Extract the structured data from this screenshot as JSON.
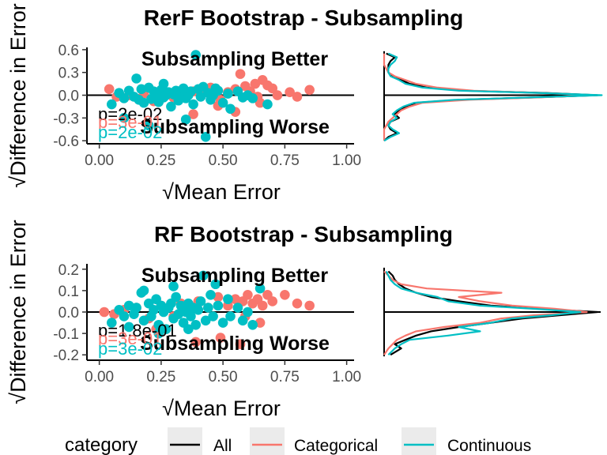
{
  "colors": {
    "all": "#000000",
    "categorical": "#F8766D",
    "continuous": "#00BFC4",
    "legend_key_bg": "#EBEBEB"
  },
  "legend": {
    "title": "category",
    "items": [
      {
        "label": "All",
        "color": "#000000"
      },
      {
        "label": "Categorical",
        "color": "#F8766D"
      },
      {
        "label": "Continuous",
        "color": "#00BFC4"
      }
    ]
  },
  "chart_data": [
    {
      "type": "scatter",
      "title": "RerF Bootstrap - Subsampling",
      "xlabel": "√Mean Error",
      "ylabel": "√Difference in Error",
      "xlim": [
        -0.05,
        1.03
      ],
      "ylim": [
        -0.64,
        0.63
      ],
      "xticks": [
        "0.00",
        "0.25",
        "0.50",
        "0.75",
        "1.00"
      ],
      "xtick_values": [
        0,
        0.25,
        0.5,
        0.75,
        1.0
      ],
      "yticks": [
        "0.6",
        "0.3",
        "0.0",
        "-0.3",
        "-0.6"
      ],
      "ytick_values": [
        0.6,
        0.3,
        0.0,
        -0.3,
        -0.6
      ],
      "annotations": {
        "better": "Subsampling Better",
        "worse": "Subsampling Worse"
      },
      "pvalues": [
        {
          "text": "p=2e-02",
          "color": "#000000"
        },
        {
          "text": "p=3e-01",
          "color": "#F8766D"
        },
        {
          "text": "p=2e-02",
          "color": "#00BFC4"
        }
      ],
      "series": [
        {
          "name": "Categorical",
          "color": "#F8766D",
          "points": [
            [
              0.04,
              0.08
            ],
            [
              0.07,
              -0.02
            ],
            [
              0.12,
              0.0
            ],
            [
              0.18,
              0.02
            ],
            [
              0.22,
              -0.08
            ],
            [
              0.26,
              0.06
            ],
            [
              0.3,
              -0.03
            ],
            [
              0.34,
              0.01
            ],
            [
              0.38,
              0.05
            ],
            [
              0.42,
              0.08
            ],
            [
              0.45,
              0.1
            ],
            [
              0.49,
              -0.06
            ],
            [
              0.52,
              0.04
            ],
            [
              0.55,
              0.08
            ],
            [
              0.57,
              0.28
            ],
            [
              0.59,
              0.12
            ],
            [
              0.61,
              0.05
            ],
            [
              0.63,
              0.15
            ],
            [
              0.64,
              -0.02
            ],
            [
              0.66,
              0.2
            ],
            [
              0.68,
              0.13
            ],
            [
              0.7,
              0.09
            ],
            [
              0.72,
              0.0
            ],
            [
              0.77,
              0.04
            ],
            [
              0.8,
              -0.02
            ],
            [
              0.85,
              0.07
            ],
            [
              0.55,
              -0.22
            ],
            [
              0.48,
              -0.14
            ],
            [
              0.38,
              -0.25
            ],
            [
              0.65,
              -0.1
            ]
          ]
        },
        {
          "name": "Continuous",
          "color": "#00BFC4",
          "points": [
            [
              0.05,
              -0.12
            ],
            [
              0.08,
              0.03
            ],
            [
              0.1,
              -0.04
            ],
            [
              0.12,
              0.06
            ],
            [
              0.14,
              -0.02
            ],
            [
              0.15,
              0.22
            ],
            [
              0.17,
              0.08
            ],
            [
              0.18,
              -0.1
            ],
            [
              0.2,
              0.1
            ],
            [
              0.21,
              -0.05
            ],
            [
              0.22,
              0.05
            ],
            [
              0.23,
              0.02
            ],
            [
              0.24,
              -0.09
            ],
            [
              0.25,
              0.07
            ],
            [
              0.26,
              -0.03
            ],
            [
              0.27,
              0.0
            ],
            [
              0.28,
              0.04
            ],
            [
              0.29,
              -0.15
            ],
            [
              0.3,
              0.01
            ],
            [
              0.31,
              0.06
            ],
            [
              0.32,
              -0.07
            ],
            [
              0.33,
              0.02
            ],
            [
              0.34,
              0.09
            ],
            [
              0.35,
              -0.04
            ],
            [
              0.36,
              0.0
            ],
            [
              0.37,
              0.05
            ],
            [
              0.38,
              -0.12
            ],
            [
              0.39,
              0.53
            ],
            [
              0.4,
              0.08
            ],
            [
              0.41,
              -0.02
            ],
            [
              0.42,
              0.11
            ],
            [
              0.43,
              -0.55
            ],
            [
              0.44,
              0.03
            ],
            [
              0.45,
              -0.06
            ],
            [
              0.46,
              0.0
            ],
            [
              0.48,
              0.06
            ],
            [
              0.5,
              -0.1
            ],
            [
              0.52,
              0.02
            ],
            [
              0.53,
              -0.18
            ],
            [
              0.56,
              0.05
            ],
            [
              0.58,
              -0.03
            ],
            [
              0.6,
              0.0
            ],
            [
              0.62,
              -0.04
            ],
            [
              0.68,
              -0.12
            ],
            [
              0.1,
              -0.3
            ],
            [
              0.2,
              -0.4
            ],
            [
              0.26,
              0.15
            ],
            [
              0.47,
              0.09
            ],
            [
              0.35,
              -0.32
            ],
            [
              0.16,
              -0.06
            ]
          ]
        }
      ],
      "density": {
        "yvals": [
          -0.6,
          -0.55,
          -0.5,
          -0.45,
          -0.4,
          -0.35,
          -0.3,
          -0.25,
          -0.2,
          -0.15,
          -0.1,
          -0.06,
          -0.03,
          0.0,
          0.03,
          0.06,
          0.1,
          0.15,
          0.2,
          0.25,
          0.3,
          0.35,
          0.4,
          0.45,
          0.5,
          0.55
        ],
        "series": [
          {
            "name": "All",
            "color": "#000000",
            "values": [
              0.0,
              0.02,
              0.06,
              0.03,
              0.02,
              0.03,
              0.07,
              0.05,
              0.07,
              0.1,
              0.15,
              0.35,
              0.7,
              1.0,
              0.75,
              0.38,
              0.2,
              0.12,
              0.08,
              0.04,
              0.02,
              0.02,
              0.02,
              0.03,
              0.05,
              0.01
            ]
          },
          {
            "name": "Categorical",
            "color": "#F8766D",
            "values": [
              0.0,
              0.0,
              0.0,
              0.0,
              0.01,
              0.02,
              0.04,
              0.06,
              0.08,
              0.12,
              0.18,
              0.4,
              0.72,
              0.98,
              0.72,
              0.42,
              0.25,
              0.15,
              0.1,
              0.05,
              0.02,
              0.01,
              0.0,
              0.0,
              0.0,
              0.0
            ]
          },
          {
            "name": "Continuous",
            "color": "#00BFC4",
            "values": [
              0.0,
              0.03,
              0.07,
              0.04,
              0.02,
              0.03,
              0.06,
              0.04,
              0.06,
              0.09,
              0.14,
              0.33,
              0.68,
              1.02,
              0.72,
              0.35,
              0.18,
              0.1,
              0.07,
              0.03,
              0.02,
              0.02,
              0.03,
              0.05,
              0.06,
              0.02
            ]
          }
        ]
      }
    },
    {
      "type": "scatter",
      "title": "RF Bootstrap - Subsampling",
      "xlabel": "√Mean Error",
      "ylabel": "√Difference in Error",
      "xlim": [
        -0.05,
        1.03
      ],
      "ylim": [
        -0.225,
        0.225
      ],
      "xticks": [
        "0.00",
        "0.25",
        "0.50",
        "0.75",
        "1.00"
      ],
      "xtick_values": [
        0,
        0.25,
        0.5,
        0.75,
        1.0
      ],
      "yticks": [
        "0.2",
        "0.1",
        "0.0",
        "-0.1",
        "-0.2"
      ],
      "ytick_values": [
        0.2,
        0.1,
        0.0,
        -0.1,
        -0.2
      ],
      "annotations": {
        "better": "Subsampling Better",
        "worse": "Subsampling Worse"
      },
      "pvalues": [
        {
          "text": "p=1.8e-01",
          "color": "#000000"
        },
        {
          "text": "p=3e-01",
          "color": "#F8766D"
        },
        {
          "text": "p=3e-02",
          "color": "#00BFC4"
        }
      ],
      "series": [
        {
          "name": "Categorical",
          "color": "#F8766D",
          "points": [
            [
              0.02,
              0.0
            ],
            [
              0.06,
              -0.01
            ],
            [
              0.1,
              0.01
            ],
            [
              0.15,
              0.02
            ],
            [
              0.2,
              -0.03
            ],
            [
              0.25,
              0.03
            ],
            [
              0.3,
              -0.02
            ],
            [
              0.33,
              0.04
            ],
            [
              0.36,
              0.0
            ],
            [
              0.4,
              0.05
            ],
            [
              0.44,
              0.02
            ],
            [
              0.48,
              0.07
            ],
            [
              0.52,
              0.03
            ],
            [
              0.55,
              0.06
            ],
            [
              0.58,
              0.05
            ],
            [
              0.6,
              0.08
            ],
            [
              0.62,
              0.04
            ],
            [
              0.64,
              0.06
            ],
            [
              0.66,
              0.03
            ],
            [
              0.68,
              0.08
            ],
            [
              0.7,
              0.05
            ],
            [
              0.75,
              0.08
            ],
            [
              0.8,
              0.04
            ],
            [
              0.85,
              0.03
            ],
            [
              0.57,
              -0.15
            ],
            [
              0.49,
              -0.12
            ],
            [
              0.39,
              -0.14
            ],
            [
              0.65,
              -0.05
            ],
            [
              0.59,
              -0.02
            ],
            [
              0.23,
              -0.08
            ]
          ]
        },
        {
          "name": "Continuous",
          "color": "#00BFC4",
          "points": [
            [
              0.05,
              -0.05
            ],
            [
              0.08,
              0.01
            ],
            [
              0.1,
              -0.02
            ],
            [
              0.12,
              0.03
            ],
            [
              0.14,
              -0.01
            ],
            [
              0.15,
              0.02
            ],
            [
              0.17,
              0.09
            ],
            [
              0.18,
              -0.04
            ],
            [
              0.2,
              0.04
            ],
            [
              0.21,
              -0.02
            ],
            [
              0.22,
              0.01
            ],
            [
              0.23,
              0.06
            ],
            [
              0.24,
              -0.06
            ],
            [
              0.25,
              0.03
            ],
            [
              0.26,
              0.0
            ],
            [
              0.27,
              -0.08
            ],
            [
              0.28,
              0.02
            ],
            [
              0.29,
              0.04
            ],
            [
              0.3,
              -0.03
            ],
            [
              0.31,
              0.07
            ],
            [
              0.32,
              -0.01
            ],
            [
              0.33,
              0.03
            ],
            [
              0.34,
              -0.05
            ],
            [
              0.35,
              0.0
            ],
            [
              0.36,
              0.04
            ],
            [
              0.37,
              -0.02
            ],
            [
              0.38,
              0.02
            ],
            [
              0.39,
              -0.06
            ],
            [
              0.4,
              0.01
            ],
            [
              0.41,
              0.05
            ],
            [
              0.42,
              0.17
            ],
            [
              0.43,
              -0.04
            ],
            [
              0.44,
              0.02
            ],
            [
              0.45,
              0.08
            ],
            [
              0.46,
              -0.02
            ],
            [
              0.48,
              0.03
            ],
            [
              0.5,
              -0.05
            ],
            [
              0.52,
              0.06
            ],
            [
              0.53,
              -0.02
            ],
            [
              0.56,
              0.02
            ],
            [
              0.58,
              -0.04
            ],
            [
              0.6,
              0.0
            ],
            [
              0.62,
              -0.06
            ],
            [
              0.65,
              0.11
            ],
            [
              0.18,
              0.1
            ],
            [
              0.3,
              0.12
            ],
            [
              0.24,
              -0.1
            ],
            [
              0.12,
              -0.07
            ],
            [
              0.47,
              0.13
            ],
            [
              0.36,
              -0.08
            ]
          ]
        }
      ],
      "density": {
        "yvals": [
          -0.2,
          -0.17,
          -0.15,
          -0.13,
          -0.11,
          -0.09,
          -0.07,
          -0.05,
          -0.03,
          -0.015,
          0.0,
          0.015,
          0.03,
          0.05,
          0.07,
          0.09,
          0.11,
          0.13,
          0.15,
          0.17,
          0.19
        ],
        "series": [
          {
            "name": "All",
            "color": "#000000",
            "values": [
              0.03,
              0.08,
              0.05,
              0.1,
              0.15,
              0.22,
              0.35,
              0.5,
              0.65,
              0.82,
              1.0,
              0.72,
              0.5,
              0.35,
              0.22,
              0.15,
              0.1,
              0.07,
              0.05,
              0.04,
              0.02
            ]
          },
          {
            "name": "Categorical",
            "color": "#F8766D",
            "values": [
              0.0,
              0.02,
              0.04,
              0.06,
              0.1,
              0.15,
              0.28,
              0.45,
              0.55,
              0.7,
              0.95,
              0.8,
              0.6,
              0.45,
              0.35,
              0.55,
              0.2,
              0.08,
              0.04,
              0.02,
              0.0
            ]
          },
          {
            "name": "Continuous",
            "color": "#00BFC4",
            "values": [
              0.02,
              0.05,
              0.08,
              0.12,
              0.3,
              0.45,
              0.35,
              0.5,
              0.6,
              0.78,
              0.92,
              0.7,
              0.45,
              0.3,
              0.25,
              0.15,
              0.08,
              0.05,
              0.03,
              0.02,
              0.01
            ]
          }
        ]
      }
    }
  ]
}
